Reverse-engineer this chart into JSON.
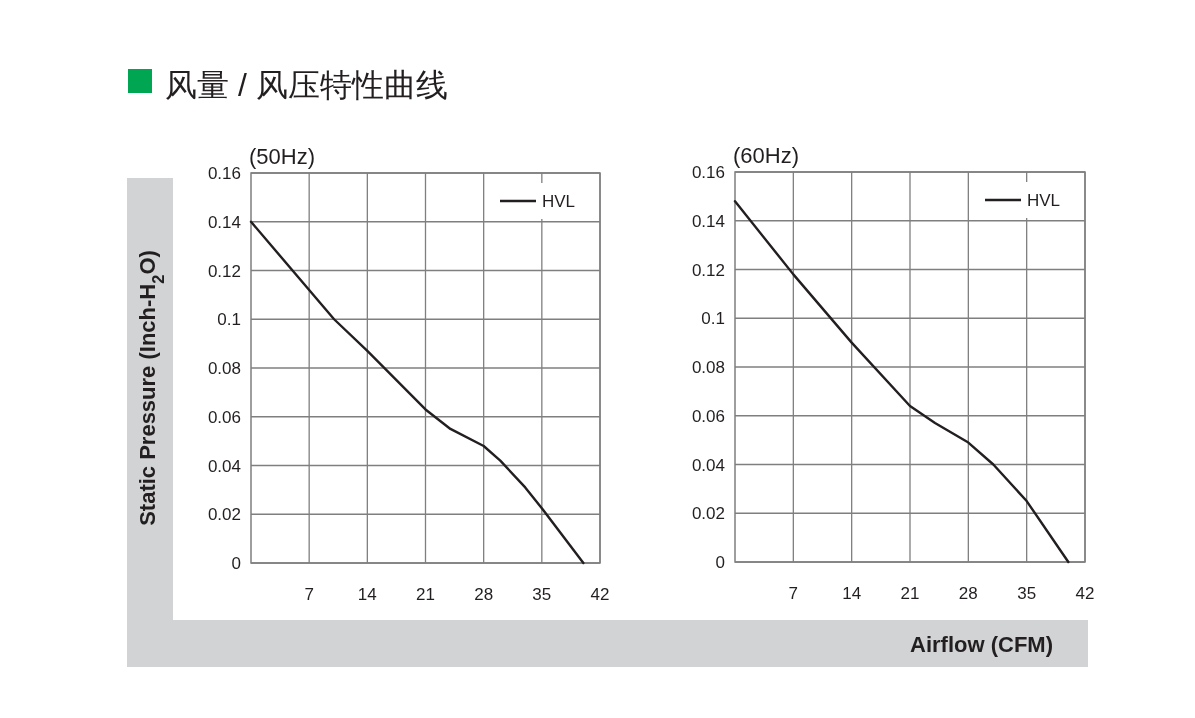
{
  "chart_data": [
    {
      "type": "line",
      "title": "(50Hz)",
      "annotations": [
        "风量 / 风压特性曲线"
      ],
      "ylabel": "Static Pressure (Inch-H$_{2}$O)",
      "x": [
        0,
        7,
        10,
        14,
        21,
        24,
        28,
        30,
        33,
        35,
        40
      ],
      "series": [
        {
          "name": "HVL",
          "color": "#231f20",
          "values": [
            0.14,
            0.112,
            0.1,
            0.087,
            0.063,
            0.055,
            0.048,
            0.042,
            0.031,
            0.0225,
            0
          ]
        }
      ],
      "xlim": [
        0,
        42
      ],
      "xticks": [
        7,
        14,
        21,
        28,
        35,
        42
      ],
      "ylim": [
        0,
        0.16
      ],
      "yticks": [
        0,
        0.02,
        0.04,
        0.06,
        0.08,
        0.1,
        0.12,
        0.14,
        0.16
      ],
      "grid": true,
      "legend": "top right",
      "marker": "none",
      "line_style": "solid"
    },
    {
      "type": "line",
      "title": "(60Hz)",
      "xlabel": "Airflow (CFM)",
      "x": [
        0,
        7,
        14,
        21,
        24,
        28,
        31,
        35,
        40
      ],
      "series": [
        {
          "name": "HVL",
          "color": "#231f20",
          "values": [
            0.148,
            0.118,
            0.09,
            0.064,
            0.057,
            0.049,
            0.04,
            0.025,
            0
          ]
        }
      ],
      "xlim": [
        0,
        42
      ],
      "xticks": [
        7,
        14,
        21,
        28,
        35,
        42
      ],
      "ylim": [
        0,
        0.16
      ],
      "yticks": [
        0,
        0.02,
        0.04,
        0.06,
        0.08,
        0.1,
        0.12,
        0.14,
        0.16
      ],
      "grid": true,
      "legend": "top right",
      "marker": "none",
      "line_style": "solid"
    }
  ]
}
